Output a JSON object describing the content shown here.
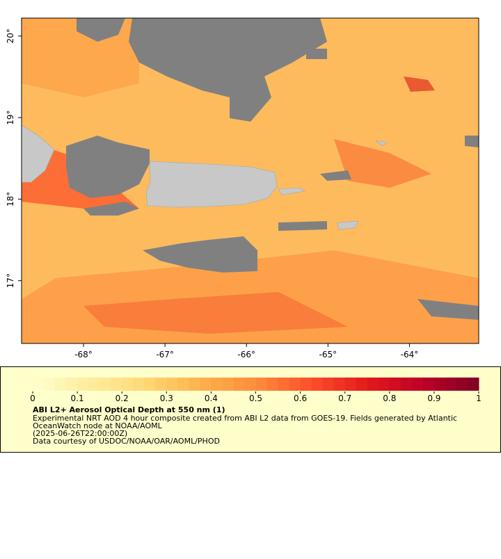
{
  "map": {
    "lonlim": [
      -68.76,
      -63.15
    ],
    "latlim": [
      16.23,
      20.22
    ],
    "lon_ticks": [
      {
        "value": -68,
        "label": "-68°"
      },
      {
        "value": -67,
        "label": "-67°"
      },
      {
        "value": -66,
        "label": "-66°"
      },
      {
        "value": -65,
        "label": "-65°"
      },
      {
        "value": -64,
        "label": "-64°"
      }
    ],
    "lat_ticks": [
      {
        "value": 17,
        "label": "17°"
      },
      {
        "value": 18,
        "label": "18°"
      },
      {
        "value": 19,
        "label": "19°"
      },
      {
        "value": 20,
        "label": "20°"
      }
    ]
  },
  "colorbar": {
    "range": [
      0,
      1
    ],
    "ticks": [
      0,
      0.1,
      0.2,
      0.3,
      0.4,
      0.5,
      0.6,
      0.7,
      0.8,
      0.9,
      1
    ],
    "colors": [
      "#ffffcc",
      "#ffeda0",
      "#fed976",
      "#feb24c",
      "#fd8d3c",
      "#fc4e2a",
      "#e31a1c",
      "#bd0026",
      "#800026"
    ]
  },
  "legend": {
    "title": "ABI L2+ Aerosol Optical Depth at 550 nm (1)",
    "lines": [
      "Experimental NRT AOD 4 hour composite created from ABI L2 data from GOES-19. Fields generated by Atlantic",
      "OceanWatch node at NOAA/AOML",
      "(2025-06-26T22:00:00Z)",
      "Data courtesy of USDOC/NOAA/OAR/AOML/PHOD"
    ]
  }
}
